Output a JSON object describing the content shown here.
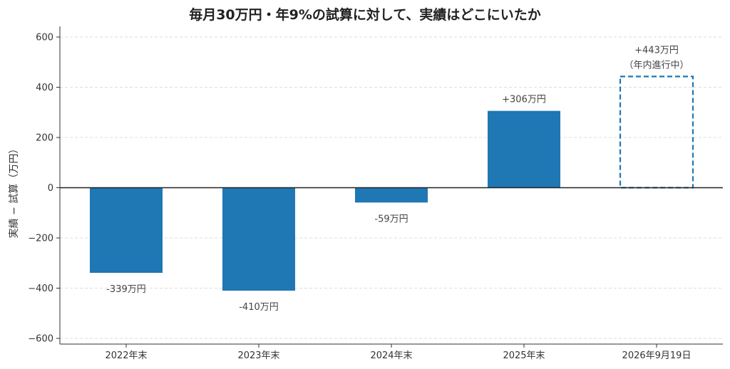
{
  "chart_data": {
    "type": "bar",
    "title": "毎月30万円・年9%の試算に対して、実績はどこにいたか",
    "ylabel": "実績 − 試算（万円）",
    "xlabel": "",
    "ylim": [
      -620,
      640
    ],
    "yticks": [
      600,
      400,
      200,
      0,
      -200,
      -400,
      -600
    ],
    "ytick_labels": [
      "600",
      "400",
      "200",
      "0",
      "−200",
      "−400",
      "−600"
    ],
    "grid": true,
    "categories": [
      "2022年末",
      "2023年末",
      "2024年末",
      "2025年末",
      "2026年9月19日"
    ],
    "values": [
      -339,
      -410,
      -59,
      306,
      443
    ],
    "data_labels": [
      "-339万円",
      "-410万円",
      "-59万円",
      "+306万円",
      "+443万円"
    ],
    "annotations": [
      "",
      "",
      "",
      "",
      "（年内進行中）"
    ],
    "styles": [
      "solid",
      "solid",
      "solid",
      "solid",
      "dashed-outline"
    ],
    "colors": {
      "bar": "#1f77b4",
      "grid": "#dddddd",
      "axis": "#333333",
      "zero_line": "#222222"
    }
  }
}
